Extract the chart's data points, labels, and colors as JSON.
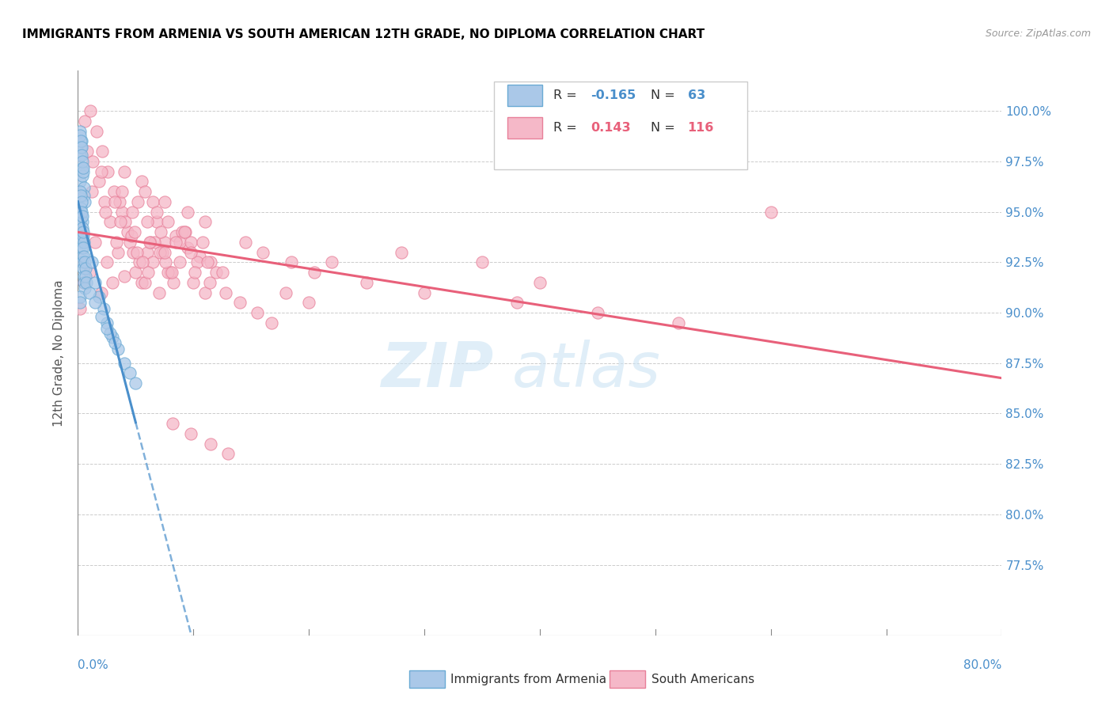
{
  "title": "IMMIGRANTS FROM ARMENIA VS SOUTH AMERICAN 12TH GRADE, NO DIPLOMA CORRELATION CHART",
  "source": "Source: ZipAtlas.com",
  "ylabel": "12th Grade, No Diploma",
  "xlim": [
    0.0,
    80.0
  ],
  "ylim": [
    74.0,
    102.0
  ],
  "armenia_R": -0.165,
  "armenia_N": 63,
  "sa_R": 0.143,
  "sa_N": 116,
  "armenia_color": "#aac8e8",
  "armenia_edge_color": "#6aaad4",
  "armenia_line_color": "#4a8fcb",
  "sa_color": "#f5b8c8",
  "sa_edge_color": "#e8809a",
  "sa_line_color": "#e8607a",
  "legend_label1": "Immigrants from Armenia",
  "legend_label2": "South Americans",
  "yticks": [
    77.5,
    80.0,
    82.5,
    85.0,
    87.5,
    90.0,
    92.5,
    95.0,
    97.5,
    100.0
  ],
  "armenia_scatter_x": [
    0.15,
    0.2,
    0.25,
    0.3,
    0.35,
    0.4,
    0.45,
    0.5,
    0.55,
    0.6,
    0.15,
    0.2,
    0.25,
    0.3,
    0.35,
    0.4,
    0.45,
    0.5,
    0.55,
    0.6,
    0.15,
    0.2,
    0.25,
    0.3,
    0.35,
    0.4,
    0.45,
    0.5,
    0.18,
    0.22,
    0.28,
    0.33,
    0.38,
    0.43,
    0.48,
    0.53,
    0.58,
    0.63,
    0.68,
    0.73,
    0.15,
    0.18,
    0.22,
    0.28,
    0.33,
    0.38,
    0.43,
    1.2,
    1.5,
    1.8,
    2.2,
    2.5,
    3.0,
    3.5,
    4.0,
    4.5,
    5.0,
    2.8,
    1.0,
    1.5,
    2.0,
    2.5,
    3.2
  ],
  "armenia_scatter_y": [
    96.5,
    97.8,
    98.2,
    98.5,
    97.2,
    96.8,
    97.0,
    96.2,
    95.8,
    95.5,
    94.5,
    93.8,
    93.5,
    93.2,
    92.8,
    92.5,
    92.2,
    91.8,
    91.5,
    91.2,
    90.8,
    90.5,
    95.2,
    94.8,
    94.5,
    94.2,
    93.8,
    93.5,
    96.0,
    95.8,
    95.5,
    95.0,
    94.8,
    94.0,
    93.2,
    92.8,
    92.5,
    92.2,
    91.8,
    91.5,
    99.0,
    98.8,
    98.5,
    98.2,
    97.8,
    97.5,
    97.2,
    92.5,
    91.5,
    90.8,
    90.2,
    89.5,
    88.8,
    88.2,
    87.5,
    87.0,
    86.5,
    89.0,
    91.0,
    90.5,
    89.8,
    89.2,
    88.5
  ],
  "sa_scatter_x": [
    0.2,
    0.5,
    1.0,
    1.5,
    2.0,
    2.5,
    3.0,
    3.5,
    4.0,
    4.5,
    5.0,
    5.5,
    6.0,
    6.5,
    7.0,
    7.5,
    8.0,
    8.5,
    9.0,
    9.5,
    10.0,
    10.5,
    11.0,
    11.5,
    12.0,
    0.8,
    1.3,
    1.8,
    2.3,
    2.8,
    3.3,
    3.8,
    4.3,
    4.8,
    5.3,
    5.8,
    6.3,
    6.8,
    7.3,
    7.8,
    8.3,
    8.8,
    9.3,
    9.8,
    10.3,
    0.6,
    1.1,
    1.6,
    2.1,
    2.6,
    3.1,
    3.6,
    4.1,
    4.6,
    5.1,
    5.6,
    6.1,
    6.6,
    7.1,
    7.6,
    8.1,
    22.0,
    28.0,
    35.0,
    40.0,
    1.2,
    2.4,
    3.7,
    4.9,
    6.2,
    7.5,
    8.8,
    10.1,
    11.4,
    12.8,
    14.0,
    15.5,
    16.8,
    18.0,
    20.0,
    4.0,
    5.5,
    6.5,
    7.8,
    9.2,
    10.8,
    3.2,
    4.7,
    6.0,
    7.2,
    8.5,
    9.8,
    11.2,
    12.5,
    5.8,
    7.5,
    9.5,
    11.0,
    2.0,
    3.8,
    5.2,
    6.8,
    8.2,
    9.8,
    11.5,
    13.0,
    14.5,
    16.0,
    18.5,
    20.5,
    25.0,
    30.0,
    38.0,
    45.0,
    52.0,
    60.0
  ],
  "sa_scatter_y": [
    90.2,
    91.5,
    92.0,
    93.5,
    91.0,
    92.5,
    91.5,
    93.0,
    91.8,
    93.5,
    92.0,
    91.5,
    93.0,
    92.5,
    91.0,
    93.5,
    92.0,
    93.8,
    94.0,
    93.2,
    91.5,
    92.8,
    91.0,
    92.5,
    92.0,
    98.0,
    97.5,
    96.5,
    95.5,
    94.5,
    93.5,
    95.0,
    94.0,
    93.0,
    92.5,
    91.5,
    93.5,
    94.5,
    93.0,
    92.0,
    91.5,
    93.5,
    94.0,
    93.5,
    92.5,
    99.5,
    100.0,
    99.0,
    98.0,
    97.0,
    96.0,
    95.5,
    94.5,
    93.8,
    93.0,
    92.5,
    92.0,
    93.5,
    93.0,
    92.5,
    92.0,
    92.5,
    93.0,
    92.5,
    91.5,
    96.0,
    95.0,
    94.5,
    94.0,
    93.5,
    93.0,
    92.5,
    92.0,
    91.5,
    91.0,
    90.5,
    90.0,
    89.5,
    91.0,
    90.5,
    97.0,
    96.5,
    95.5,
    94.5,
    94.0,
    93.5,
    95.5,
    95.0,
    94.5,
    94.0,
    93.5,
    93.0,
    92.5,
    92.0,
    96.0,
    95.5,
    95.0,
    94.5,
    97.0,
    96.0,
    95.5,
    95.0,
    84.5,
    84.0,
    83.5,
    83.0,
    93.5,
    93.0,
    92.5,
    92.0,
    91.5,
    91.0,
    90.5,
    90.0,
    89.5,
    95.0
  ]
}
